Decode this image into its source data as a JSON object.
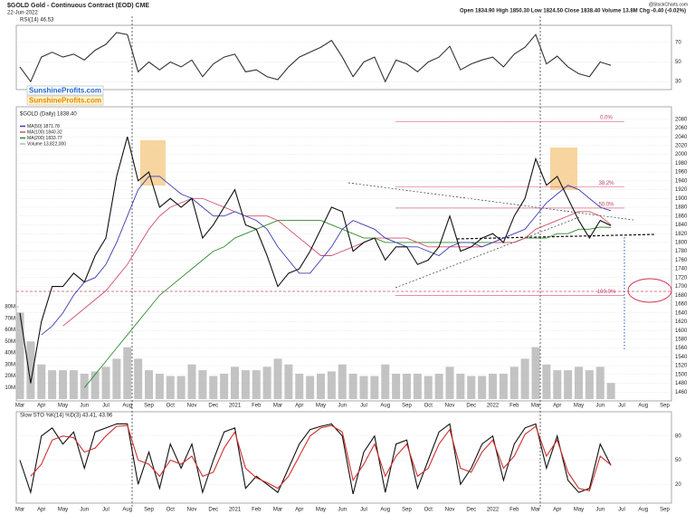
{
  "header": {
    "title": "$GOLD Gold - Continuous Contract (EOD) CME",
    "date": "22-Jun-2022",
    "quote": "Open 1834.90 High 1850.30 Low 1824.50 Close 1838.40 Volume 13.8M Chg -0.40 (-0.02%)",
    "brand": "@StockCharts.com"
  },
  "badges": [
    "SunshineProfits.com",
    "SunshineProfits.com"
  ],
  "chart_data": [
    {
      "type": "line",
      "title": "RSI(14) 46.53",
      "ylim": [
        20,
        80
      ],
      "yticks": [
        30,
        50,
        70
      ],
      "grid": true,
      "series": [
        {
          "color": "#333333",
          "values": [
            45,
            30,
            55,
            60,
            55,
            58,
            52,
            62,
            68,
            80,
            78,
            40,
            50,
            42,
            50,
            45,
            52,
            35,
            48,
            55,
            58,
            40,
            42,
            35,
            32,
            45,
            55,
            60,
            65,
            72,
            55,
            35,
            50,
            55,
            30,
            52,
            48,
            40,
            50,
            55,
            66,
            42,
            48,
            52,
            55,
            45,
            58,
            65,
            78,
            48,
            56,
            45,
            38,
            35,
            50,
            46.53,
            null,
            null,
            null,
            null,
            null,
            null
          ]
        }
      ]
    },
    {
      "type": "line",
      "title": "$GOLD (Daily) 1838.40",
      "categories": [
        "Mar",
        null,
        "Apr",
        null,
        "May",
        null,
        "Jun",
        null,
        "Jul",
        null,
        "Aug",
        null,
        "Sep",
        null,
        "Oct",
        null,
        "Nov",
        null,
        "Dec",
        null,
        "2021",
        null,
        "Feb",
        null,
        "Mar",
        null,
        "Apr",
        null,
        "May",
        null,
        "Jun",
        null,
        "Jul",
        null,
        "Aug",
        null,
        "Sep",
        null,
        "Oct",
        null,
        "Nov",
        null,
        "Dec",
        null,
        "2022",
        null,
        "Feb",
        null,
        "Mar",
        null,
        "Apr",
        null,
        "May",
        null,
        "Jun",
        null,
        "Jul",
        null,
        "Aug",
        null,
        "Sep",
        null
      ],
      "ylim": [
        1440,
        2100
      ],
      "yticks": [
        1460,
        1480,
        1500,
        1520,
        1540,
        1560,
        1580,
        1600,
        1620,
        1640,
        1660,
        1680,
        1700,
        1720,
        1740,
        1760,
        1780,
        1800,
        1820,
        1840,
        1860,
        1880,
        1900,
        1920,
        1940,
        1960,
        1980,
        2000,
        2020,
        2040,
        2060,
        2080
      ],
      "y2lim": [
        0,
        80000000
      ],
      "y2ticks": [
        {
          "value": 10000000,
          "label": "10M"
        },
        {
          "value": 20000000,
          "label": "20M"
        },
        {
          "value": 30000000,
          "label": "30M"
        },
        {
          "value": 40000000,
          "label": "40M"
        },
        {
          "value": 50000000,
          "label": "50M"
        },
        {
          "value": 60000000,
          "label": "60M"
        },
        {
          "value": 70000000,
          "label": "70M"
        },
        {
          "value": 80000000,
          "label": "80M"
        }
      ],
      "grid": true,
      "series": [
        {
          "name": "Volume 13,822,000",
          "type": "bar",
          "axis": "y2",
          "color": "#b9b9b9",
          "values": [
            75000000,
            50000000,
            30000000,
            25000000,
            25000000,
            25000000,
            22000000,
            24000000,
            28000000,
            35000000,
            45000000,
            35000000,
            25000000,
            22000000,
            20000000,
            20000000,
            30000000,
            25000000,
            20000000,
            22000000,
            28000000,
            25000000,
            25000000,
            28000000,
            35000000,
            30000000,
            22000000,
            20000000,
            22000000,
            24000000,
            30000000,
            22000000,
            20000000,
            20000000,
            30000000,
            22000000,
            22000000,
            22000000,
            20000000,
            22000000,
            28000000,
            22000000,
            20000000,
            20000000,
            22000000,
            22000000,
            28000000,
            35000000,
            45000000,
            30000000,
            25000000,
            25000000,
            28000000,
            25000000,
            28000000,
            14000000,
            null,
            null,
            null,
            null,
            null,
            null
          ]
        },
        {
          "name": "MA(200) 1833.77",
          "color": "#2e8b2e",
          "values": [
            null,
            null,
            null,
            null,
            null,
            null,
            1470,
            1500,
            1530,
            1560,
            1590,
            1620,
            1650,
            1680,
            1700,
            1720,
            1740,
            1760,
            1780,
            1790,
            1810,
            1820,
            1830,
            1840,
            1850,
            1850,
            1850,
            1850,
            1850,
            1840,
            1830,
            1820,
            1810,
            1810,
            1800,
            1800,
            1800,
            1800,
            1800,
            1800,
            1800,
            1800,
            1800,
            1800,
            1800,
            1800,
            1800,
            1810,
            1810,
            1810,
            1820,
            1820,
            1830,
            1830,
            1835,
            1834,
            null,
            null,
            null,
            null,
            null,
            null
          ]
        },
        {
          "name": "MA(100) 1840.32",
          "color": "#d0506a",
          "values": [
            null,
            null,
            null,
            null,
            1610,
            1630,
            1650,
            1670,
            1690,
            1720,
            1750,
            1790,
            1830,
            1860,
            1880,
            1890,
            1900,
            1900,
            1890,
            1880,
            1870,
            1860,
            1860,
            1860,
            1850,
            1830,
            1810,
            1790,
            1770,
            1770,
            1780,
            1790,
            1800,
            1810,
            1810,
            1810,
            1810,
            1800,
            1790,
            1790,
            1790,
            1790,
            1790,
            1790,
            1800,
            1800,
            1800,
            1810,
            1830,
            1840,
            1850,
            1860,
            1870,
            1870,
            1860,
            1840,
            null,
            null,
            null,
            null,
            null,
            null
          ]
        },
        {
          "name": "MA(50) 1871.78",
          "color": "#3b3bb0",
          "values": [
            null,
            null,
            1590,
            1610,
            1640,
            1680,
            1710,
            1720,
            1750,
            1800,
            1860,
            1920,
            1950,
            1950,
            1930,
            1910,
            1900,
            1880,
            1860,
            1860,
            1870,
            1860,
            1850,
            1830,
            1790,
            1760,
            1730,
            1730,
            1760,
            1790,
            1830,
            1850,
            1840,
            1830,
            1810,
            1800,
            1790,
            1790,
            1780,
            1770,
            1790,
            1800,
            1800,
            1790,
            1800,
            1810,
            1820,
            1830,
            1860,
            1890,
            1910,
            1930,
            1920,
            1900,
            1880,
            1872,
            null,
            null,
            null,
            null,
            null,
            null
          ]
        },
        {
          "color": "#111111",
          "values": [
            1640,
            1480,
            1620,
            1700,
            1700,
            1730,
            1710,
            1770,
            1810,
            1950,
            2040,
            1940,
            1960,
            1880,
            1900,
            1880,
            1900,
            1810,
            1840,
            1880,
            1920,
            1840,
            1830,
            1770,
            1700,
            1730,
            1740,
            1780,
            1830,
            1880,
            1870,
            1780,
            1800,
            1810,
            1760,
            1790,
            1790,
            1750,
            1760,
            1790,
            1860,
            1780,
            1790,
            1810,
            1820,
            1800,
            1860,
            1900,
            1990,
            1930,
            1950,
            1900,
            1850,
            1810,
            1850,
            1838,
            null,
            null,
            null,
            null,
            null,
            null
          ]
        }
      ],
      "levels": [
        {
          "label": "0.0%",
          "value": 2075
        },
        {
          "label": "38.2%",
          "value": 1926
        },
        {
          "label": "50.0%",
          "value": 1878
        },
        {
          "label": "100.0%",
          "value": 1680
        }
      ]
    },
    {
      "type": "line",
      "title": "Slow STO %K(14) %D(3) 43.41, 43.96",
      "categories": [
        "Mar",
        null,
        "Apr",
        null,
        "May",
        null,
        "Jun",
        null,
        "Jul",
        null,
        "Aug",
        null,
        "Sep",
        null,
        "Oct",
        null,
        "Nov",
        null,
        "Dec",
        null,
        "2021",
        null,
        "Feb",
        null,
        "Mar",
        null,
        "Apr",
        null,
        "May",
        null,
        "Jun",
        null,
        "Jul",
        null,
        "Aug",
        null,
        "Sep",
        null,
        "Oct",
        null,
        "Nov",
        null,
        "Dec",
        null,
        "2022",
        null,
        "Feb",
        null,
        "Mar",
        null,
        "Apr",
        null,
        "May",
        null,
        "Jun",
        null,
        "Jul",
        null,
        "Aug",
        null,
        "Sep",
        null
      ],
      "ylim": [
        0,
        100
      ],
      "yticks": [
        20,
        50,
        80
      ],
      "grid": true,
      "series": [
        {
          "color": "#111111",
          "values": [
            50,
            10,
            80,
            90,
            70,
            85,
            40,
            85,
            90,
            95,
            95,
            20,
            60,
            15,
            70,
            40,
            70,
            10,
            50,
            85,
            90,
            15,
            30,
            20,
            10,
            40,
            70,
            88,
            92,
            95,
            80,
            8,
            60,
            80,
            10,
            70,
            75,
            15,
            50,
            85,
            95,
            20,
            40,
            70,
            80,
            25,
            70,
            90,
            95,
            40,
            80,
            25,
            10,
            15,
            70,
            43.41,
            null,
            null,
            null,
            null,
            null,
            null
          ]
        },
        {
          "color": "#d03030",
          "values": [
            null,
            30,
            45,
            75,
            80,
            78,
            60,
            65,
            80,
            92,
            93,
            50,
            45,
            30,
            50,
            45,
            55,
            30,
            35,
            65,
            85,
            40,
            28,
            22,
            15,
            30,
            55,
            80,
            90,
            93,
            85,
            25,
            45,
            70,
            30,
            55,
            70,
            30,
            40,
            70,
            88,
            40,
            35,
            60,
            75,
            40,
            55,
            82,
            92,
            55,
            75,
            35,
            15,
            12,
            55,
            43.96,
            null,
            null,
            null,
            null,
            null,
            null
          ]
        }
      ]
    }
  ]
}
